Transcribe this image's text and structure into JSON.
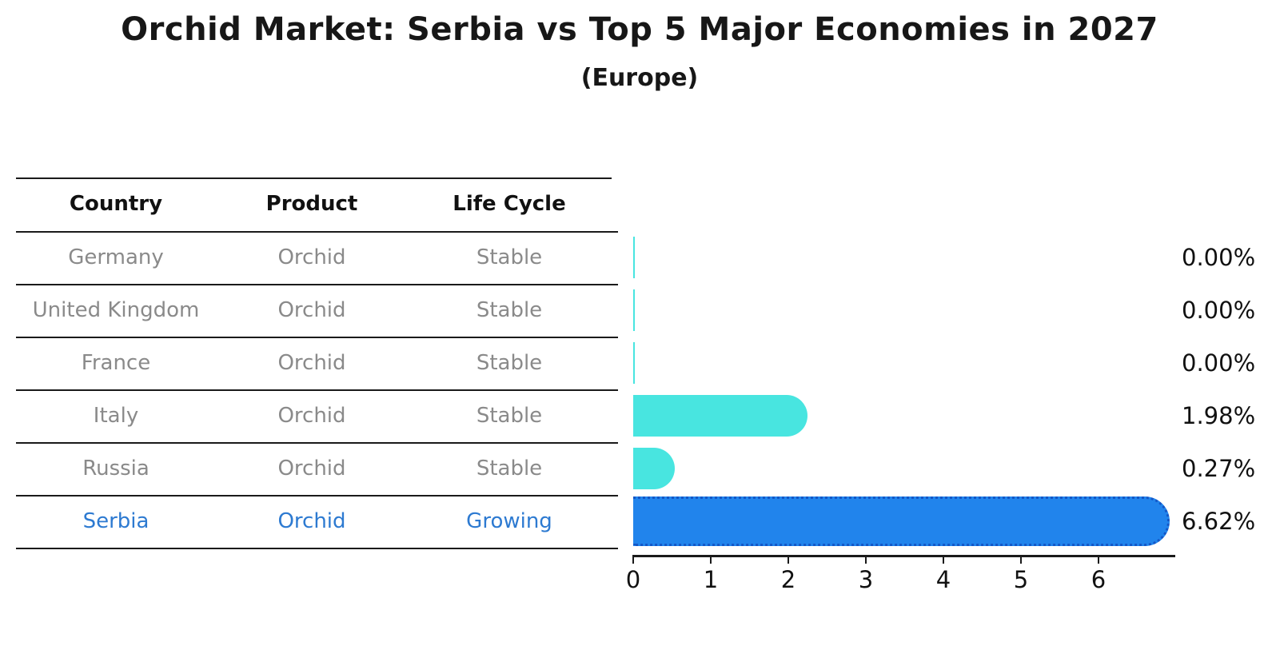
{
  "title": "Orchid Market: Serbia vs Top 5 Major Economies in 2027",
  "subtitle": "(Europe)",
  "table": {
    "headers": [
      "Country",
      "Product",
      "Life Cycle"
    ],
    "rows": [
      {
        "country": "Germany",
        "product": "Orchid",
        "life_cycle": "Stable",
        "value_label": "0.00%",
        "value": 0.0,
        "highlight": false
      },
      {
        "country": "United Kingdom",
        "product": "Orchid",
        "life_cycle": "Stable",
        "value_label": "0.00%",
        "value": 0.0,
        "highlight": false
      },
      {
        "country": "France",
        "product": "Orchid",
        "life_cycle": "Stable",
        "value_label": "0.00%",
        "value": 0.0,
        "highlight": false
      },
      {
        "country": "Italy",
        "product": "Orchid",
        "life_cycle": "Stable",
        "value_label": "1.98%",
        "value": 1.98,
        "highlight": false
      },
      {
        "country": "Russia",
        "product": "Orchid",
        "life_cycle": "Stable",
        "value_label": "0.27%",
        "value": 0.27,
        "highlight": false
      },
      {
        "country": "Serbia",
        "product": "Orchid",
        "life_cycle": "Growing",
        "value_label": "6.62%",
        "value": 6.62,
        "highlight": true
      }
    ]
  },
  "chart_data": {
    "type": "bar",
    "orientation": "horizontal",
    "title": "Orchid Market: Serbia vs Top 5 Major Economies in 2027",
    "subtitle": "(Europe)",
    "categories": [
      "Germany",
      "United Kingdom",
      "France",
      "Italy",
      "Russia",
      "Serbia"
    ],
    "values": [
      0.0,
      0.0,
      0.0,
      1.98,
      0.27,
      6.62
    ],
    "value_labels": [
      "0.00%",
      "0.00%",
      "0.00%",
      "1.98%",
      "0.27%",
      "6.62%"
    ],
    "units": "percent",
    "xlabel": "",
    "ylabel": "",
    "xlim": [
      0,
      7
    ],
    "x_ticks": [
      0,
      1,
      2,
      3,
      4,
      5,
      6
    ],
    "grid": false,
    "legend": "none",
    "colors": {
      "default_bar": "#48e5e0",
      "highlight_bar": "#2184ec",
      "highlight_border": "#1457c7",
      "highlight_text": "#2d7ad1",
      "row_text": "#8a8a8a",
      "header_text": "#111111",
      "axis": "#1a1a1a"
    }
  }
}
